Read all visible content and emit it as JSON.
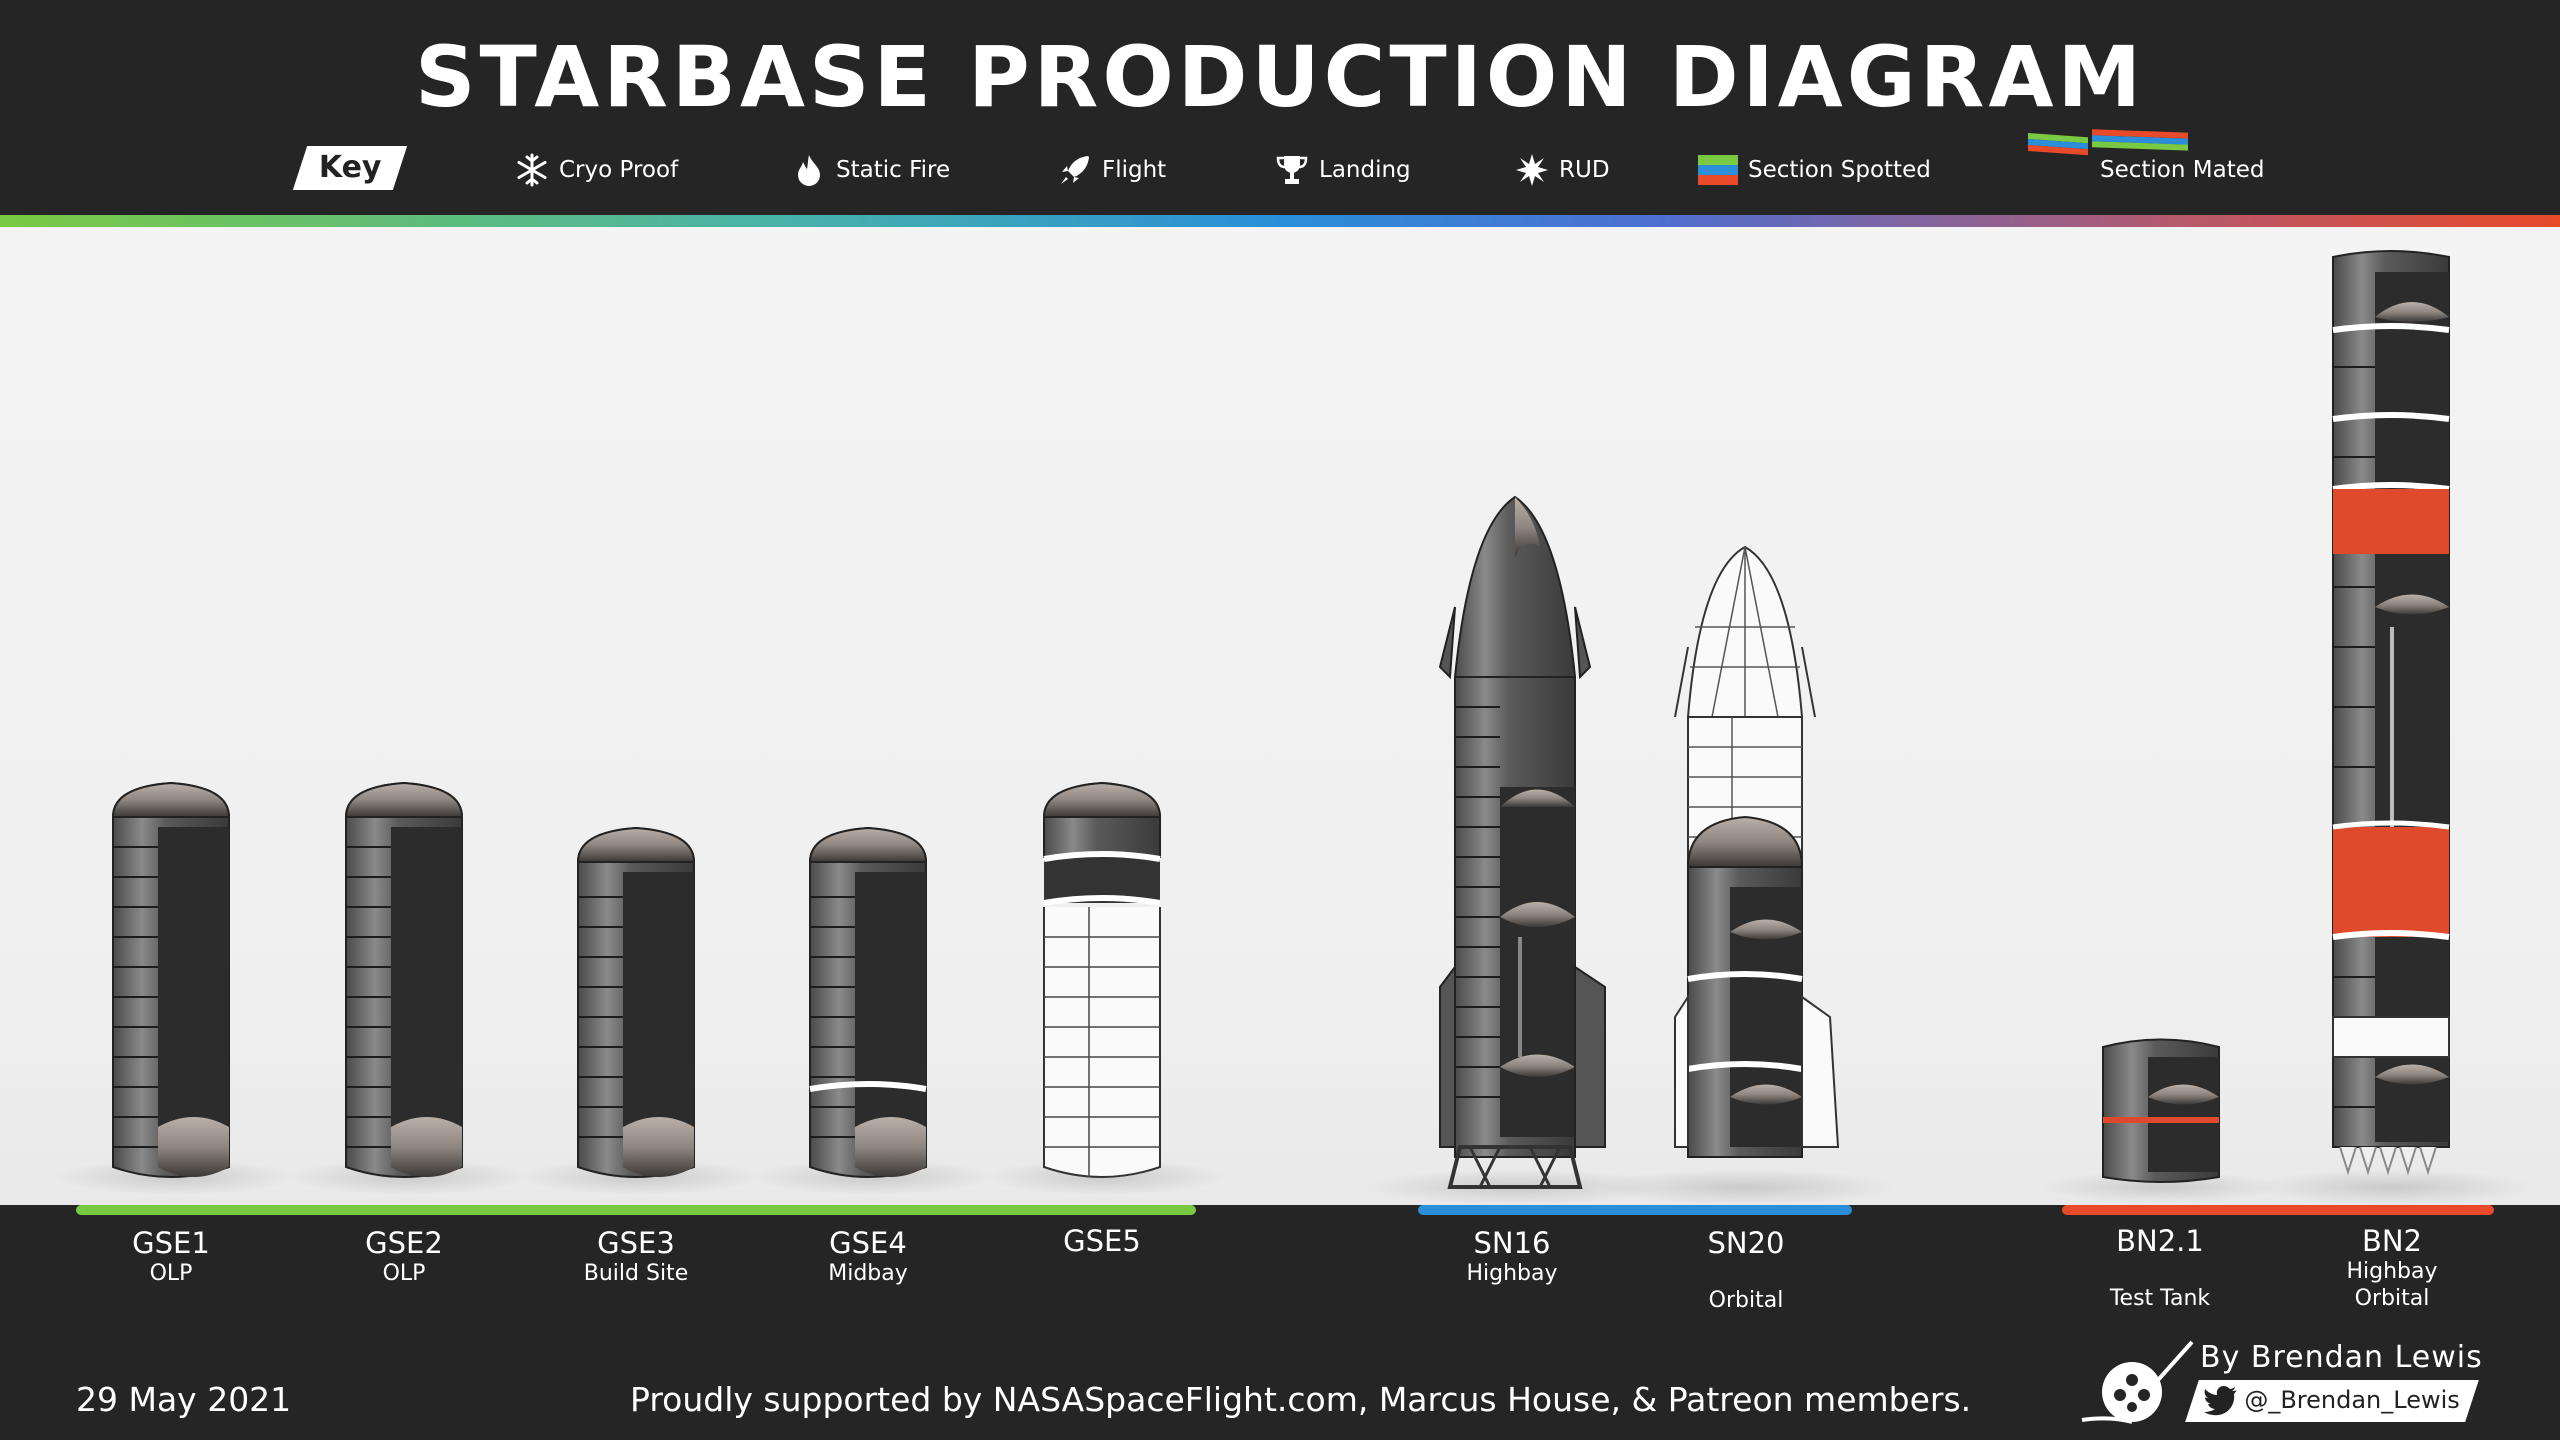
{
  "header": {
    "title": "STARBASE PRODUCTION DIAGRAM"
  },
  "key": {
    "label": "Key",
    "items": [
      {
        "icon": "snowflake-icon",
        "label": "Cryo Proof"
      },
      {
        "icon": "flame-icon",
        "label": "Static Fire"
      },
      {
        "icon": "rocket-icon",
        "label": "Flight"
      },
      {
        "icon": "trophy-icon",
        "label": "Landing"
      },
      {
        "icon": "burst-icon",
        "label": "RUD"
      },
      {
        "icon": "section-spotted-icon",
        "label": "Section Spotted"
      },
      {
        "icon": "section-mated-icon",
        "label": "Section Mated"
      }
    ]
  },
  "colors": {
    "gse_group": "#7ac943",
    "sn_group": "#2a8fd8",
    "bn_group": "#e84a2a",
    "section_red": "#e04a2c"
  },
  "groups": [
    {
      "name": "gse",
      "color": "#7ac943"
    },
    {
      "name": "sn",
      "color": "#2a8fd8"
    },
    {
      "name": "bn",
      "color": "#e84a2a"
    }
  ],
  "vehicles": [
    {
      "id": "GSE1",
      "name": "GSE1",
      "line1": "OLP",
      "line2": ""
    },
    {
      "id": "GSE2",
      "name": "GSE2",
      "line1": "OLP",
      "line2": ""
    },
    {
      "id": "GSE3",
      "name": "GSE3",
      "line1": "Build Site",
      "line2": ""
    },
    {
      "id": "GSE4",
      "name": "GSE4",
      "line1": "Midbay",
      "line2": ""
    },
    {
      "id": "GSE5",
      "name": "GSE5",
      "line1": "",
      "line2": ""
    },
    {
      "id": "SN16",
      "name": "SN16",
      "line1": "Highbay",
      "line2": ""
    },
    {
      "id": "SN20",
      "name": "SN20",
      "line1": "",
      "line2": "Orbital"
    },
    {
      "id": "BN2.1",
      "name": "BN2.1",
      "line1": "",
      "line2": "Test Tank"
    },
    {
      "id": "BN2",
      "name": "BN2",
      "line1": "Highbay",
      "line2": "Orbital"
    }
  ],
  "footer": {
    "date": "29 May 2021",
    "support": "Proudly supported by NASASpaceFlight.com, Marcus House, & Patreon members.",
    "byline": "By Brendan Lewis",
    "handle": "@_Brendan_Lewis"
  }
}
